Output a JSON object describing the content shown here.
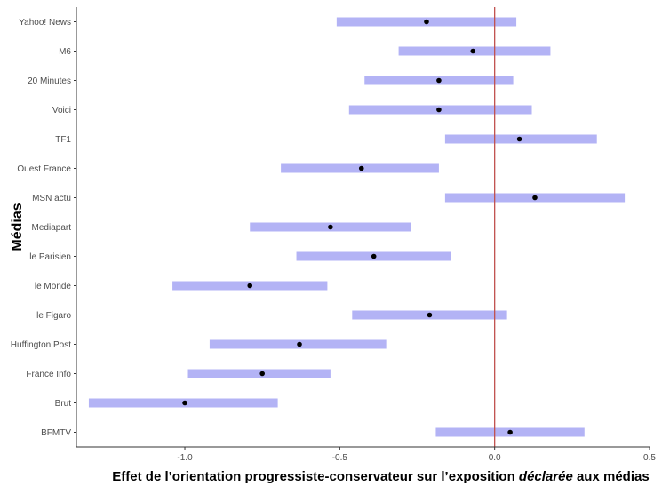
{
  "chart_data": {
    "type": "errorbar",
    "ylabel": "Médias",
    "xlabel_parts": [
      {
        "text": "Effet de l’orientation progressiste-conservateur sur l’exposition ",
        "italic": false
      },
      {
        "text": "déclarée",
        "italic": true
      },
      {
        "text": " aux médias",
        "italic": false
      }
    ],
    "xlim": [
      -1.35,
      0.5
    ],
    "xticks": [
      -1.0,
      -0.5,
      0.0,
      0.5
    ],
    "xtick_labels": [
      "-1.0",
      "-0.5",
      "0.0",
      "0.5"
    ],
    "reference_line": 0,
    "grid": false,
    "colors": {
      "interval": "#b3b3f5",
      "point": "#000000",
      "reference": "#c0504d",
      "axis": "#333333"
    },
    "categories": [
      "Yahoo! News",
      "M6",
      "20 Minutes",
      "Voici",
      "TF1",
      "Ouest France",
      "MSN actu",
      "Mediapart",
      "le Parisien",
      "le Monde",
      "le Figaro",
      "Huffington Post",
      "France Info",
      "Brut",
      "BFMTV"
    ],
    "estimates": [
      -0.22,
      -0.07,
      -0.18,
      -0.18,
      0.08,
      -0.43,
      0.13,
      -0.53,
      -0.39,
      -0.79,
      -0.21,
      -0.63,
      -0.75,
      -1.0,
      0.05
    ],
    "lower": [
      -0.51,
      -0.31,
      -0.42,
      -0.47,
      -0.16,
      -0.69,
      -0.16,
      -0.79,
      -0.64,
      -1.04,
      -0.46,
      -0.92,
      -0.99,
      -1.31,
      -0.19
    ],
    "upper": [
      0.07,
      0.18,
      0.06,
      0.12,
      0.33,
      -0.18,
      0.42,
      -0.27,
      -0.14,
      -0.54,
      0.04,
      -0.35,
      -0.53,
      -0.7,
      0.29
    ]
  }
}
